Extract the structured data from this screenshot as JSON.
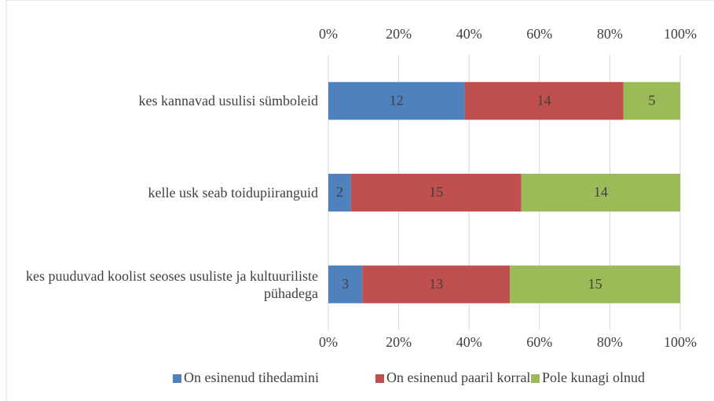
{
  "chart_data": {
    "type": "stacked-bar-100",
    "categories": [
      "kes kannavad usulisi sümboleid",
      "kelle usk seab toidupiiranguid",
      "kes puuduvad koolist seoses usuliste ja kultuuriliste pühadega"
    ],
    "series": [
      {
        "name": "On esinenud tihedamini",
        "color": "#4f81bd",
        "values": [
          12,
          2,
          3
        ]
      },
      {
        "name": "On esinenud paaril korral",
        "color": "#c0504d",
        "values": [
          14,
          15,
          13
        ]
      },
      {
        "name": "Pole kunagi olnud",
        "color": "#9bbb59",
        "values": [
          5,
          14,
          15
        ]
      }
    ],
    "xlim": [
      0,
      100
    ],
    "xticks": [
      {
        "value": 0,
        "label": "0%"
      },
      {
        "value": 20,
        "label": "20%"
      },
      {
        "value": 40,
        "label": "40%"
      },
      {
        "value": 60,
        "label": "60%"
      },
      {
        "value": 80,
        "label": "80%"
      },
      {
        "value": 100,
        "label": "100%"
      }
    ],
    "grid": true,
    "legend": "bottom"
  }
}
